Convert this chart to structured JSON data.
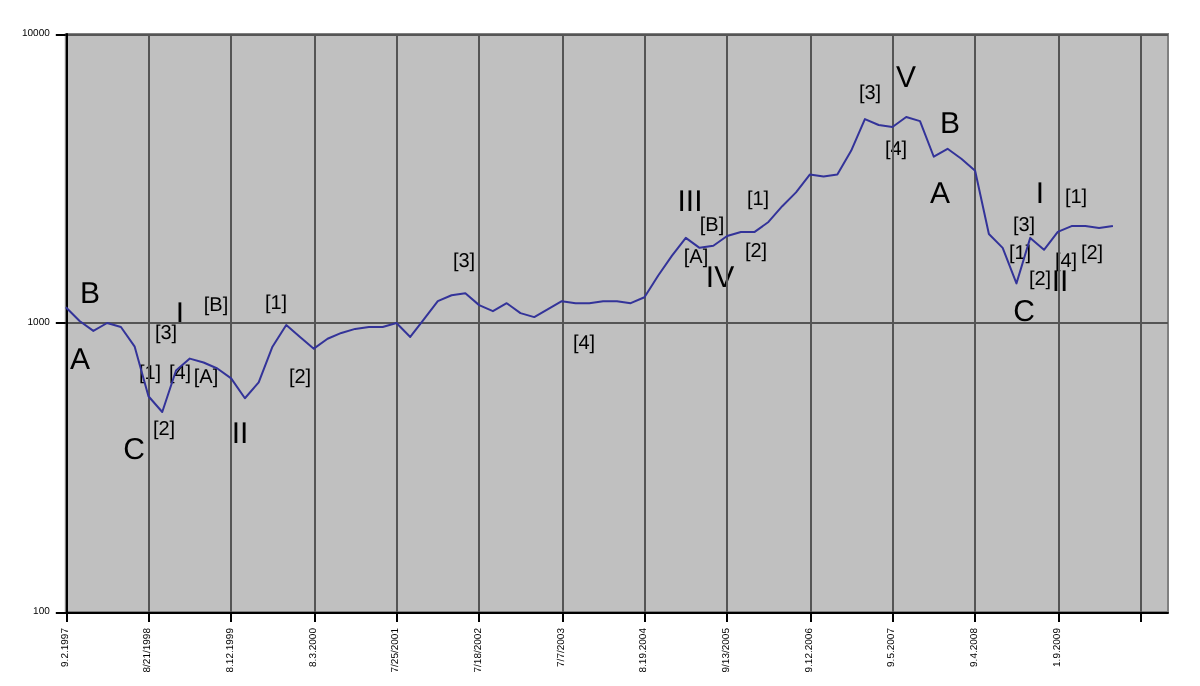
{
  "chart_data": {
    "type": "line",
    "log": "y",
    "grid": true,
    "marker": "none",
    "line_style": "solid",
    "ylim": [
      100,
      10000
    ],
    "yticks": [
      100,
      1000,
      10000
    ],
    "categories": [
      "9.2.1997",
      null,
      null,
      null,
      null,
      null,
      "8/21/1998",
      null,
      null,
      null,
      null,
      null,
      "8.12.1999",
      null,
      null,
      null,
      null,
      null,
      "8.3.2000",
      null,
      null,
      null,
      null,
      null,
      "7/25/2001",
      null,
      null,
      null,
      null,
      null,
      "7/18/2002",
      null,
      null,
      null,
      null,
      null,
      "7/7/2003",
      null,
      null,
      null,
      null,
      null,
      "8.19.2004",
      null,
      null,
      null,
      null,
      null,
      "9/13/2005",
      null,
      null,
      null,
      null,
      null,
      "9.12.2006",
      null,
      null,
      null,
      null,
      null,
      "9.5.2007",
      null,
      null,
      null,
      null,
      null,
      "9.4.2008",
      null,
      null,
      null,
      null,
      null,
      "1.9.2009",
      null,
      null,
      null,
      null,
      null,
      null,
      null,
      null
    ],
    "series": [
      {
        "color": "#333399",
        "values": [
          1134,
          1016,
          939,
          1000,
          969,
          828,
          558,
          492,
          685,
          753,
          730,
          696,
          643,
          549,
          623,
          828,
          984,
          895,
          815,
          882,
          924,
          954,
          969,
          969,
          1000,
          895,
          1032,
          1190,
          1247,
          1267,
          1153,
          1099,
          1171,
          1082,
          1048,
          1117,
          1190,
          1171,
          1171,
          1190,
          1190,
          1171,
          1228,
          1460,
          1710,
          1970,
          1820,
          1850,
          2000,
          2066,
          2066,
          2237,
          2536,
          2832,
          3264,
          3212,
          3264,
          3944,
          5077,
          4842,
          4766,
          5160,
          4996,
          3761,
          4007,
          3703,
          3366,
          2033,
          1820,
          1371,
          1970,
          1792,
          2066,
          2165,
          2165,
          2131,
          2165,
          null,
          null,
          null,
          null
        ]
      }
    ],
    "annotations": [
      "B",
      "A",
      "C",
      "[2]",
      "[1]",
      "[3]",
      "I",
      "[4]",
      "[A]",
      "[B]",
      "II",
      "[1]",
      "[2]",
      "[3]",
      "[4]",
      "III",
      "[1]",
      "[B]",
      "[A]",
      "IV",
      "[2]",
      "[3]",
      "V",
      "[4]",
      "B",
      "A",
      "I",
      "[1]",
      "[3]",
      "[1]",
      "[4]",
      "[2]",
      "II",
      "[2]",
      "C"
    ]
  }
}
